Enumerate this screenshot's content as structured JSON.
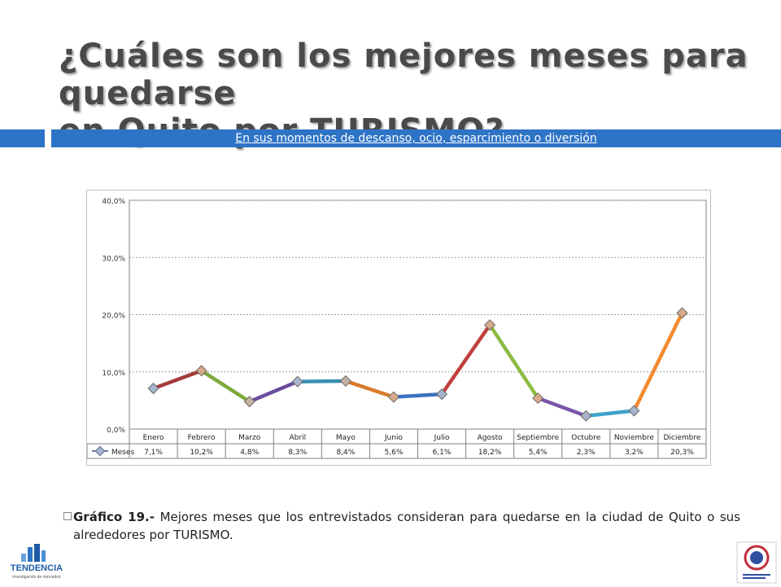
{
  "title_line1": "¿Cuáles son los mejores meses para quedarse",
  "title_line2": "en Quito por TURISMO?",
  "subtitle": "En sus momentos de descanso, ocio, esparcimiento o diversión",
  "caption": {
    "lead": "Gráfico 19.-",
    "text": " Mejores meses que los entrevistados consideran para quedarse en la ciudad de Quito o sus alrededores por TURISMO."
  },
  "logos": {
    "left_text": "TENDENCIA",
    "left_subtext": "investigación de mercados"
  },
  "chart_data": {
    "type": "line",
    "categories": [
      "Enero",
      "Febrero",
      "Marzo",
      "Abril",
      "Mayo",
      "Junio",
      "Julio",
      "Agosto",
      "Septiembre",
      "Octubre",
      "Noviembre",
      "Diciembre"
    ],
    "series": [
      {
        "name": "Meses",
        "values": [
          7.1,
          10.2,
          4.8,
          8.3,
          8.4,
          5.6,
          6.1,
          18.2,
          5.4,
          2.3,
          3.2,
          20.3
        ],
        "labels": [
          "7,1%",
          "10,2%",
          "4,8%",
          "8,3%",
          "8,4%",
          "5,6%",
          "6,1%",
          "18,2%",
          "5,4%",
          "2,3%",
          "3,2%",
          "20,3%"
        ]
      }
    ],
    "segment_colors": [
      "#a33b3b",
      "#7fa83c",
      "#6a4c9c",
      "#3a8fb7",
      "#d97a2b",
      "#3a72c0",
      "#c0403e",
      "#8dbb42",
      "#7a55a8",
      "#3ca3c8",
      "#f28a30"
    ],
    "marker_colors": [
      "#a7b4cc",
      "#d9a98a",
      "#c6b2a3",
      "#a7b4cc",
      "#c6b2a3",
      "#d9a98a",
      "#a7b4cc",
      "#d9a98a",
      "#d9a98a",
      "#a7b4cc",
      "#a7b4cc",
      "#d9a98a"
    ],
    "y_ticks": [
      "0,0%",
      "10,0%",
      "20,0%",
      "30,0%",
      "40,0%"
    ],
    "ylim": [
      0,
      40
    ],
    "grid": true,
    "legend": "table-left"
  }
}
